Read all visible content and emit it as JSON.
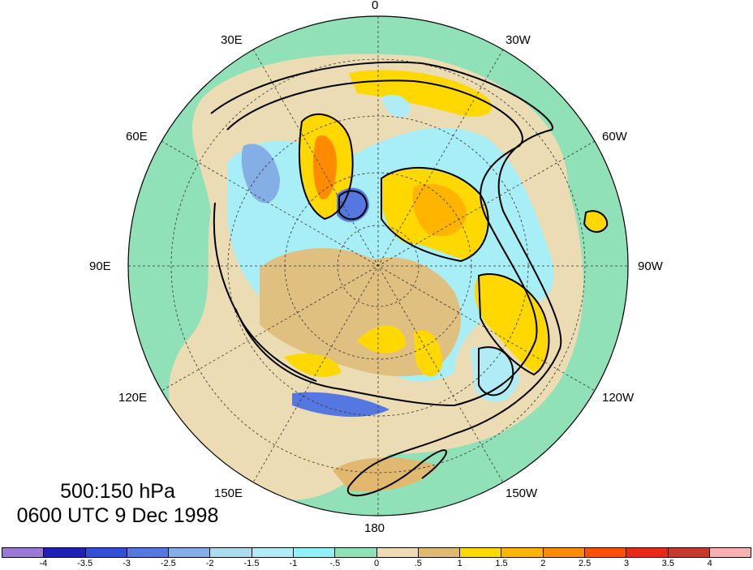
{
  "map": {
    "projection": "polar-stereographic-north",
    "lon_labels": {
      "l0": "0",
      "l30w": "30W",
      "l60w": "60W",
      "l90w": "90W",
      "l120w": "120W",
      "l150w": "150W",
      "l180": "180",
      "l150e": "150E",
      "l120e": "120E",
      "l90e": "90E",
      "l60e": "60E",
      "l30e": "30E"
    },
    "title_line1": "500:150 hPa",
    "title_line2": "0600 UTC 9 Dec 1998"
  },
  "colorbar": {
    "colors": [
      "#9b78d6",
      "#2020b8",
      "#2f4fd8",
      "#5478e0",
      "#84aee6",
      "#a8dcee",
      "#b0ecf6",
      "#90f2f8",
      "#90e0b8",
      "#ecdcb4",
      "#e0b870",
      "#ffd800",
      "#ffb400",
      "#ff8c00",
      "#ff5000",
      "#e82818",
      "#c83a30",
      "#f8b0b0"
    ],
    "tick_labels": [
      "-4",
      "-3.5",
      "-3",
      "-2.5",
      "-2",
      "-1.5",
      "-1",
      "-.5",
      "0",
      ".5",
      "1",
      "1.5",
      "2",
      "2.5",
      "3",
      "3.5",
      "4"
    ]
  }
}
